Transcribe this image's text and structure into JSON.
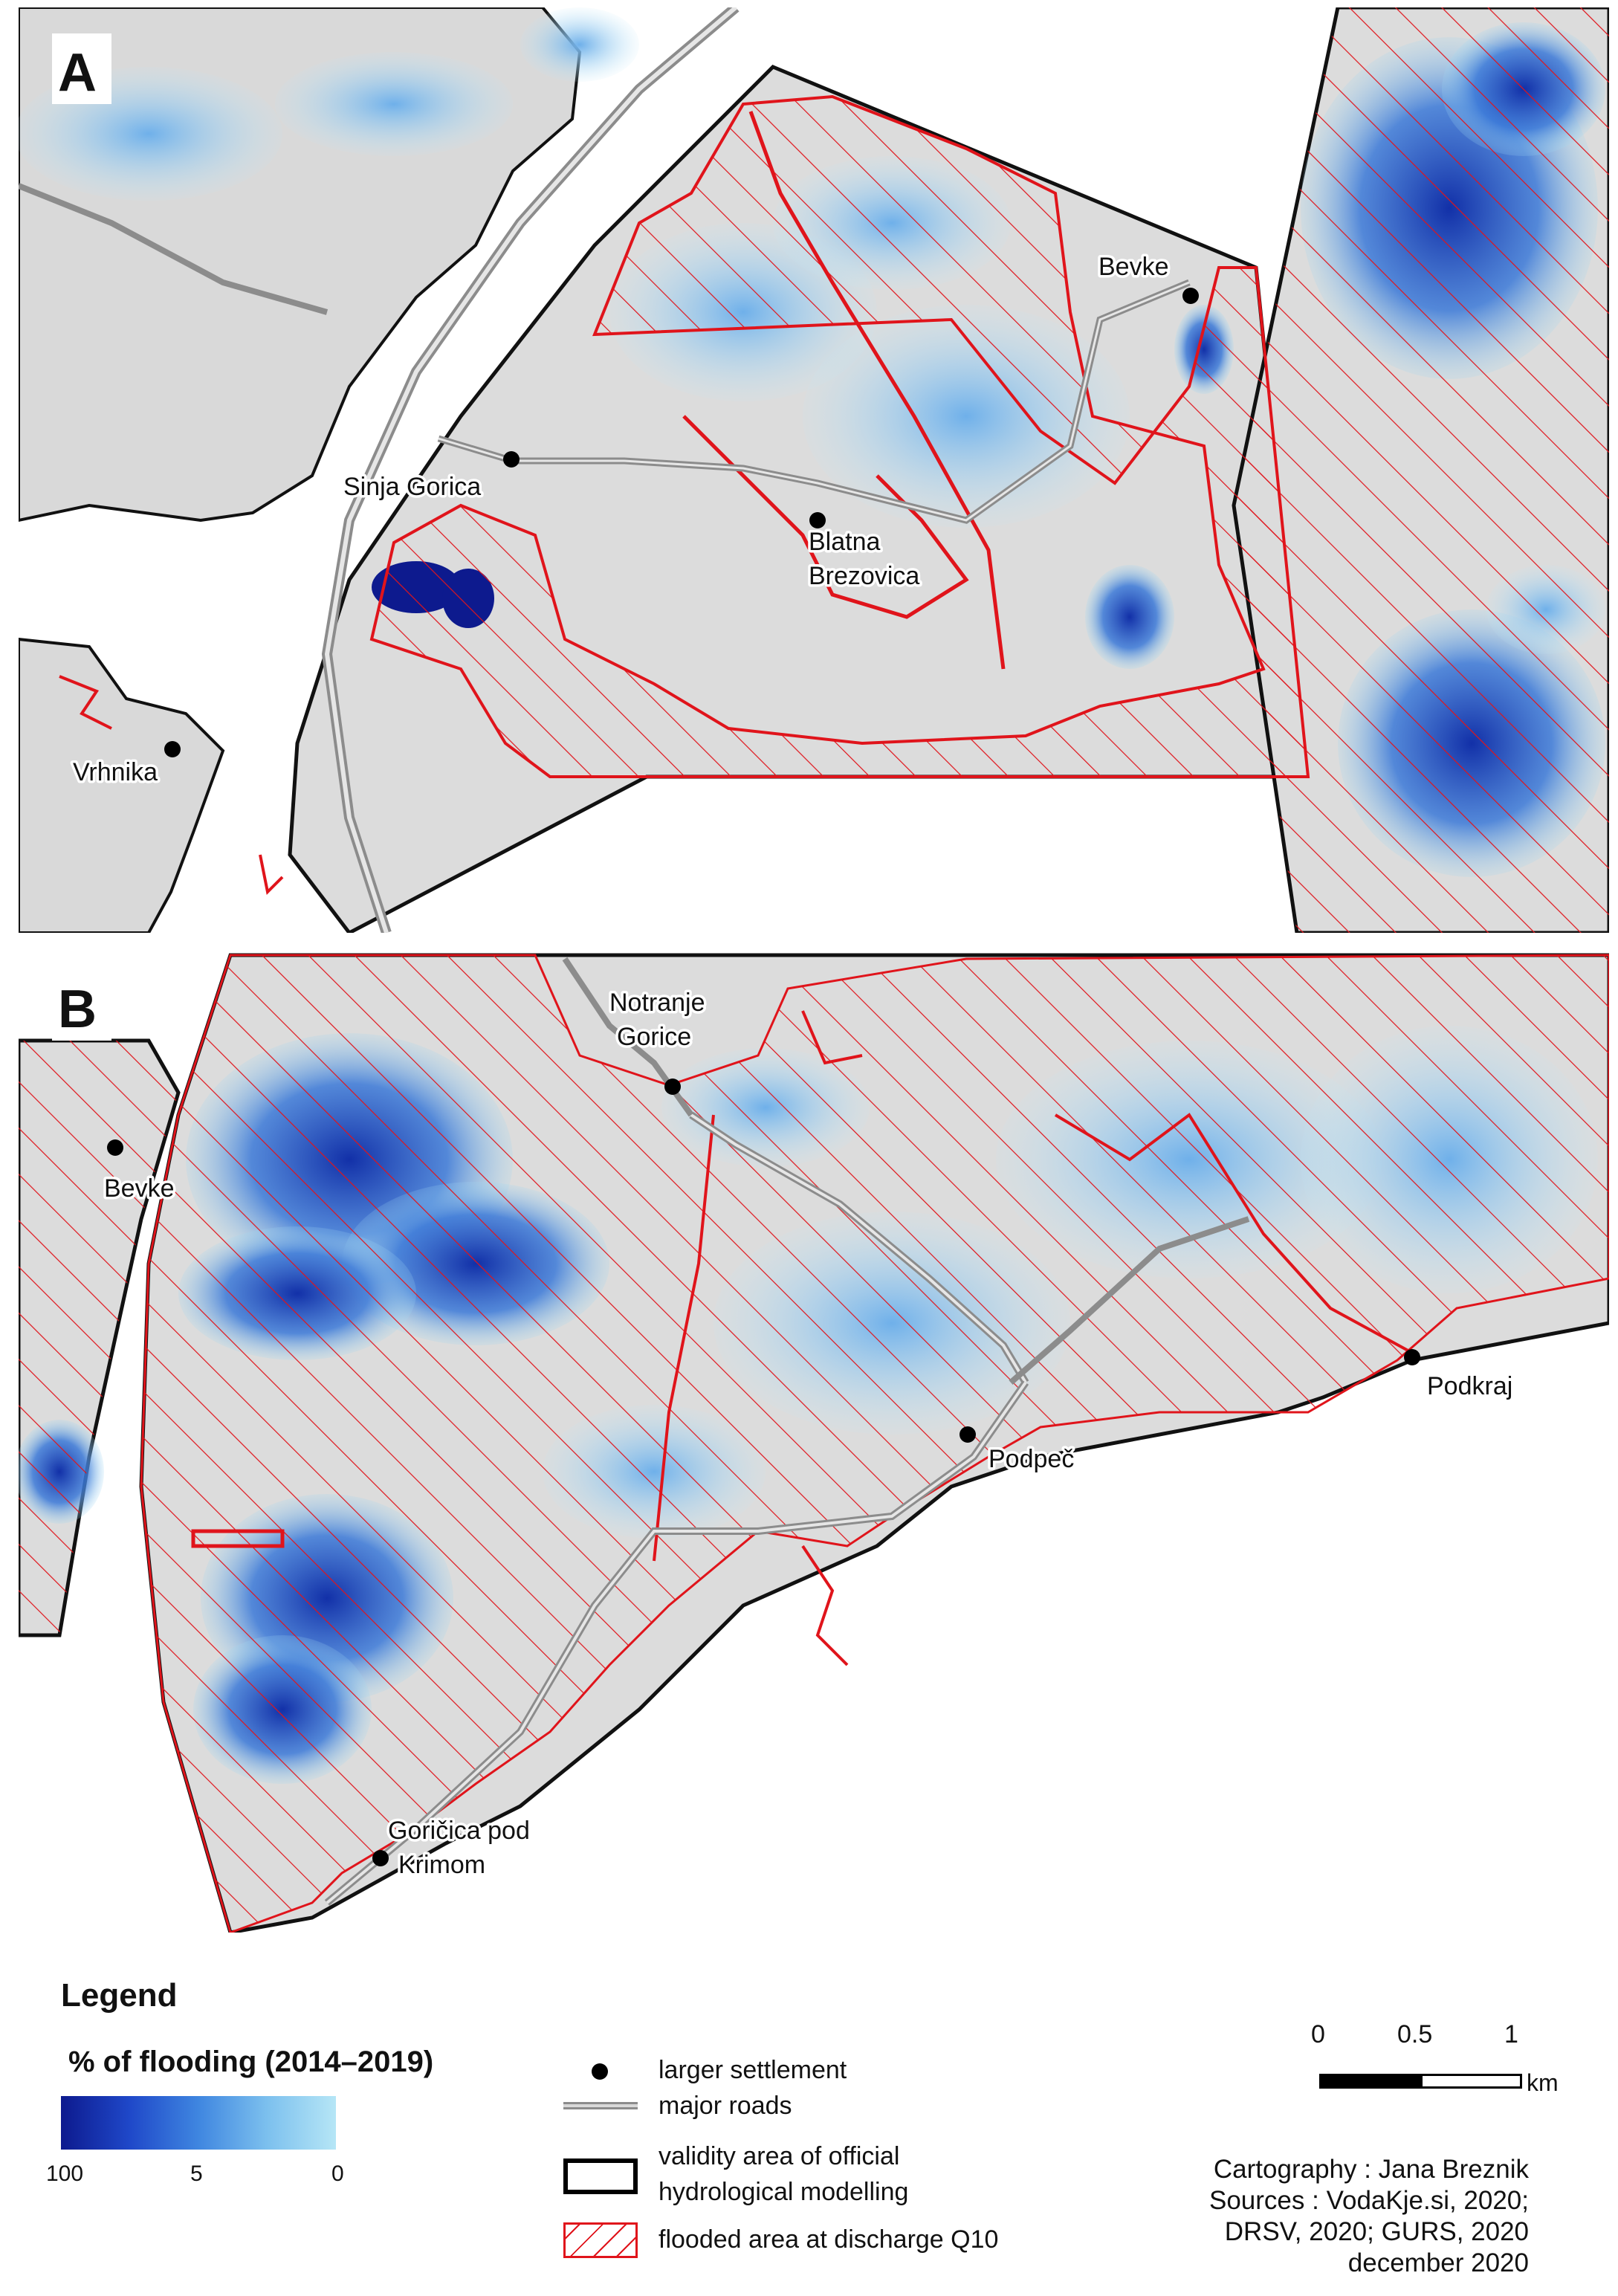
{
  "panels": [
    {
      "letter": "A"
    },
    {
      "letter": "B"
    }
  ],
  "places_a": [
    {
      "name": "Sinja Gorica"
    },
    {
      "name": "Blatna"
    },
    {
      "name": "Brezovica"
    },
    {
      "name": "Bevke"
    },
    {
      "name": "Vrhnika"
    }
  ],
  "places_b": [
    {
      "name": "Notranje"
    },
    {
      "name": "Gorice"
    },
    {
      "name": "Bevke"
    },
    {
      "name": "Podkraj"
    },
    {
      "name": "Podpeč"
    },
    {
      "name": "Goričica pod"
    },
    {
      "name": "Krimom"
    }
  ],
  "legend": {
    "title": "Legend",
    "ramp_title": "% of flooding (2014–2019)",
    "ramp_labels": [
      "100",
      "5",
      "0"
    ],
    "ramp_colors": [
      "#0d1a8e",
      "#1f48c9",
      "#3f86e0",
      "#7cc0ee",
      "#b6e6f6"
    ],
    "items": {
      "settlement": "larger settlement",
      "roads": "major roads",
      "validity_1": "validity area of official",
      "validity_2": "hydrological modelling",
      "flooded": "flooded area at discharge Q10"
    }
  },
  "scale": {
    "ticks": [
      "0",
      "0.5",
      "1"
    ],
    "unit": "km"
  },
  "credits": {
    "line1": "Cartography : Jana Breznik",
    "line2": "Sources : VodaKje.si, 2020;",
    "line3": "DRSV, 2020; GURS, 2020",
    "line4": "december 2020"
  },
  "colors": {
    "terrain": "#d6d6d6",
    "flood_line": "#e0141b",
    "boundary": "#000000",
    "road": "#8c8c8c"
  }
}
